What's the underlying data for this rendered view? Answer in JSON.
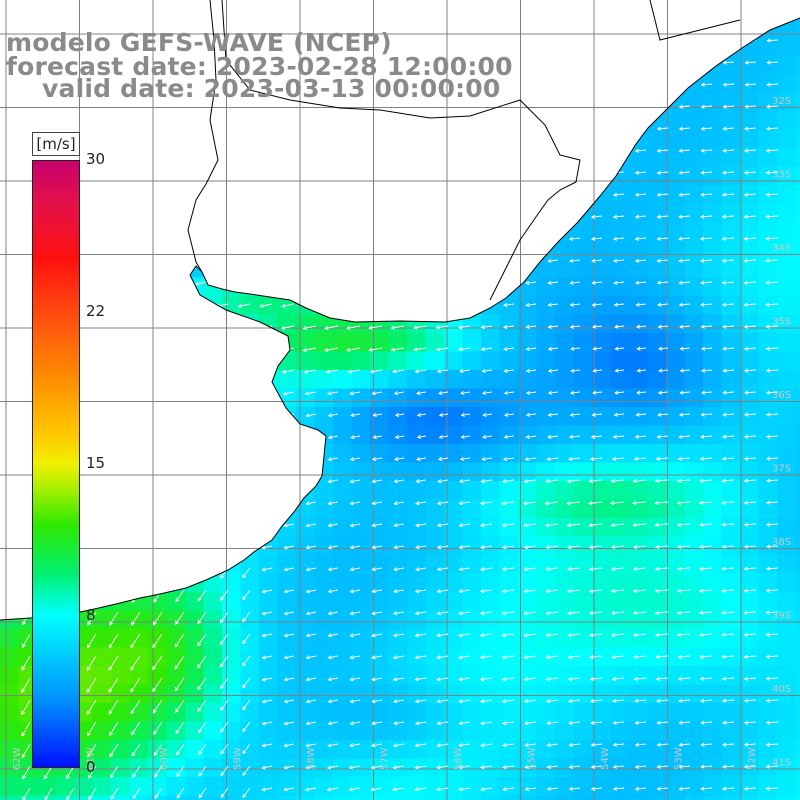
{
  "title": {
    "line1": "modelo GEFS-WAVE (NCEP)",
    "line2": "forecast date: 2023-02-28 12:00:00",
    "line3": "valid date: 2023-03-13 00:00:00"
  },
  "colorbar": {
    "units": "[m/s]",
    "ticks": [
      "30",
      "22",
      "15",
      "8",
      "0"
    ],
    "min": 0,
    "max": 30
  },
  "grid": {
    "lat_labels": [
      "32S",
      "33S",
      "34S",
      "35S",
      "36S",
      "37S",
      "38S",
      "39S",
      "40S",
      "41S"
    ],
    "lon_labels": [
      "62W",
      "61W",
      "60W",
      "59W",
      "58W",
      "57W",
      "56W",
      "55W",
      "54W",
      "53W",
      "52W"
    ]
  },
  "colors": {
    "title": "#8a8a8a",
    "coastline": "#000000",
    "gridline": "#808080",
    "arrows": "#ffffff",
    "land": "#ffffff"
  }
}
